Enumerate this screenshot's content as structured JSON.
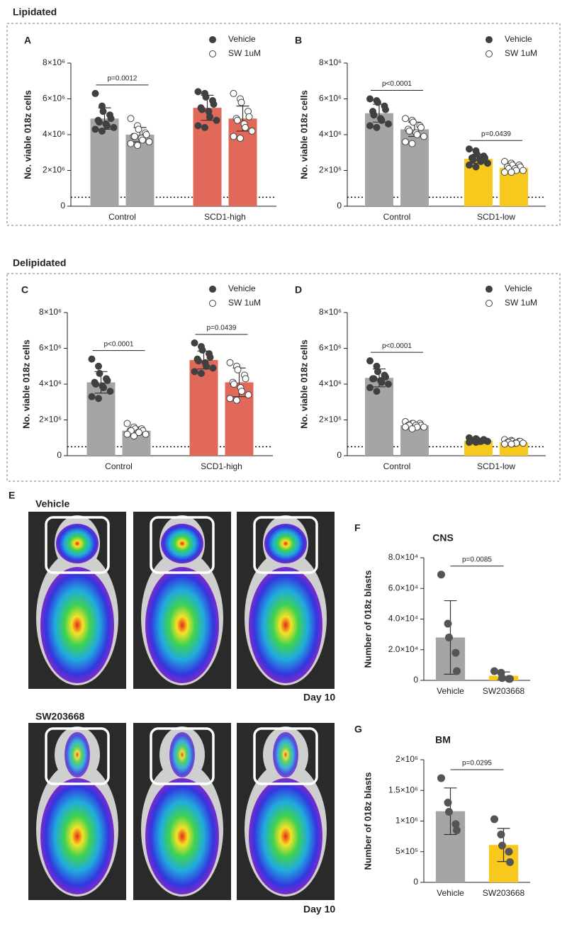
{
  "sections": [
    "Lipidated",
    "Delipidated"
  ],
  "panel_labels": [
    "A",
    "B",
    "C",
    "D",
    "E",
    "F",
    "G"
  ],
  "images": [
    {
      "title": "Vehicle",
      "day": "Day 10"
    },
    {
      "title": "SW203668",
      "day": "Day 10"
    }
  ],
  "chart_data": [
    {
      "type": "bar",
      "ylabel": "No. viable 018z cells",
      "categories": [
        "Control",
        "SCD1-high"
      ],
      "colors": [
        "#a5a5a7",
        "#e0695a"
      ],
      "ylim": [
        0,
        8000000.0
      ],
      "yticks": [
        0,
        {
          "value": 2000000.0,
          "label": "2×10⁶"
        },
        {
          "value": 4000000.0,
          "label": "4×10⁶"
        },
        {
          "value": 6000000.0,
          "label": "6×10⁶"
        },
        {
          "value": 8000000.0,
          "label": "8×10⁶"
        }
      ],
      "reference_line": 500000.0,
      "annotations": [
        "p=0.0012",
        null
      ],
      "series": [
        {
          "name": "Vehicle",
          "color": "#404040",
          "filled": true,
          "values": [
            4900000.0,
            5500000.0
          ],
          "errors": [
            600000.0,
            700000.0
          ],
          "points": [
            [
              6300000.0,
              5600000.0,
              5300000.0,
              5100000.0,
              4900000.0,
              4800000.0,
              4700000.0,
              4600000.0,
              4500000.0,
              4400000.0,
              4300000.0,
              4200000.0
            ],
            [
              6400000.0,
              6300000.0,
              6100000.0,
              5900000.0,
              5700000.0,
              5500000.0,
              5400000.0,
              5300000.0,
              5000000.0,
              4800000.0,
              4500000.0,
              4400000.0
            ]
          ]
        },
        {
          "name": "SW 1uM",
          "color": "#404040",
          "filled": false,
          "values": [
            4000000.0,
            4900000.0
          ],
          "errors": [
            400000.0,
            700000.0
          ],
          "points": [
            [
              4900000.0,
              4500000.0,
              4300000.0,
              4100000.0,
              4000000.0,
              3900000.0,
              3900000.0,
              3800000.0,
              3700000.0,
              3600000.0,
              3500000.0,
              3400000.0
            ],
            [
              6300000.0,
              6000000.0,
              5800000.0,
              5300000.0,
              5000000.0,
              4900000.0,
              4800000.0,
              4600000.0,
              4400000.0,
              4200000.0,
              3900000.0,
              3800000.0
            ]
          ]
        }
      ]
    },
    {
      "type": "bar",
      "ylabel": "No. viable 018z cells",
      "categories": [
        "Control",
        "SCD1-low"
      ],
      "colors": [
        "#a5a5a7",
        "#f7c91c"
      ],
      "ylim": [
        0,
        8000000.0
      ],
      "yticks": [
        0,
        {
          "value": 2000000.0,
          "label": "2×10⁶"
        },
        {
          "value": 4000000.0,
          "label": "4×10⁶"
        },
        {
          "value": 6000000.0,
          "label": "6×10⁶"
        },
        {
          "value": 8000000.0,
          "label": "8×10⁶"
        }
      ],
      "reference_line": 500000.0,
      "annotations": [
        "p<0.0001",
        "p=0.0439"
      ],
      "series": [
        {
          "name": "Vehicle",
          "color": "#404040",
          "filled": true,
          "values": [
            5200000.0,
            2650000.0
          ],
          "errors": [
            500000.0,
            250000.0
          ],
          "points": [
            [
              6000000.0,
              5900000.0,
              5800000.0,
              5600000.0,
              5400000.0,
              5300000.0,
              5100000.0,
              4900000.0,
              4800000.0,
              4600000.0,
              4500000.0,
              4400000.0
            ],
            [
              3200000.0,
              3100000.0,
              2900000.0,
              2800000.0,
              2700000.0,
              2700000.0,
              2600000.0,
              2600000.0,
              2500000.0,
              2400000.0,
              2300000.0,
              2200000.0
            ]
          ]
        },
        {
          "name": "SW 1uM",
          "color": "#404040",
          "filled": false,
          "values": [
            4300000.0,
            2150000.0
          ],
          "errors": [
            400000.0,
            200000.0
          ],
          "points": [
            [
              4900000.0,
              4800000.0,
              4700000.0,
              4500000.0,
              4400000.0,
              4300000.0,
              4200000.0,
              4100000.0,
              4000000.0,
              3900000.0,
              3600000.0,
              3500000.0
            ],
            [
              2500000.0,
              2400000.0,
              2300000.0,
              2300000.0,
              2200000.0,
              2200000.0,
              2100000.0,
              2100000.0,
              2000000.0,
              2000000.0,
              1900000.0,
              1900000.0
            ]
          ]
        }
      ]
    },
    {
      "type": "bar",
      "ylabel": "No. viable 018z cells",
      "categories": [
        "Control",
        "SCD1-high"
      ],
      "colors": [
        "#a5a5a7",
        "#e0695a"
      ],
      "ylim": [
        0,
        8000000.0
      ],
      "yticks": [
        0,
        {
          "value": 2000000.0,
          "label": "2×10⁶"
        },
        {
          "value": 4000000.0,
          "label": "4×10⁶"
        },
        {
          "value": 6000000.0,
          "label": "6×10⁶"
        },
        {
          "value": 8000000.0,
          "label": "8×10⁶"
        }
      ],
      "reference_line": 500000.0,
      "annotations": [
        "p<0.0001",
        "p=0.0439"
      ],
      "series": [
        {
          "name": "Vehicle",
          "color": "#404040",
          "filled": true,
          "values": [
            4100000.0,
            5350000.0
          ],
          "errors": [
            600000.0,
            500000.0
          ],
          "points": [
            [
              5400000.0,
              5000000.0,
              4600000.0,
              4300000.0,
              4200000.0,
              4100000.0,
              4000000.0,
              3900000.0,
              3800000.0,
              3600000.0,
              3300000.0,
              3200000.0
            ],
            [
              6300000.0,
              6100000.0,
              5900000.0,
              5700000.0,
              5500000.0,
              5400000.0,
              5300000.0,
              5200000.0,
              5000000.0,
              4900000.0,
              4700000.0,
              4600000.0
            ]
          ]
        },
        {
          "name": "SW 1uM",
          "color": "#404040",
          "filled": false,
          "values": [
            1400000.0,
            4100000.0
          ],
          "errors": [
            200000.0,
            800000.0
          ],
          "points": [
            [
              1800000.0,
              1600000.0,
              1500000.0,
              1500000.0,
              1400000.0,
              1400000.0,
              1400000.0,
              1300000.0,
              1300000.0,
              1200000.0,
              1200000.0,
              1100000.0
            ],
            [
              5200000.0,
              5000000.0,
              4800000.0,
              4500000.0,
              4300000.0,
              4100000.0,
              4000000.0,
              3800000.0,
              3600000.0,
              3400000.0,
              3200000.0,
              3100000.0
            ]
          ]
        }
      ]
    },
    {
      "type": "bar",
      "ylabel": "No. viable 018z cells",
      "categories": [
        "Control",
        "SCD1-low"
      ],
      "colors": [
        "#a5a5a7",
        "#f7c91c"
      ],
      "ylim": [
        0,
        8000000.0
      ],
      "yticks": [
        0,
        {
          "value": 2000000.0,
          "label": "2×10⁶"
        },
        {
          "value": 4000000.0,
          "label": "4×10⁶"
        },
        {
          "value": 6000000.0,
          "label": "6×10⁶"
        },
        {
          "value": 8000000.0,
          "label": "8×10⁶"
        }
      ],
      "reference_line": 500000.0,
      "annotations": [
        "p<0.0001",
        null
      ],
      "series": [
        {
          "name": "Vehicle",
          "color": "#404040",
          "filled": true,
          "values": [
            4350000.0,
            850000.0
          ],
          "errors": [
            500000.0,
            80000.0
          ],
          "points": [
            [
              5300000.0,
              5000000.0,
              4700000.0,
              4500000.0,
              4400000.0,
              4300000.0,
              4300000.0,
              4200000.0,
              4100000.0,
              4000000.0,
              3800000.0,
              3600000.0
            ],
            [
              1000000.0,
              950000.0,
              900000.0,
              900000.0,
              850000.0,
              850000.0,
              850000.0,
              800000.0,
              800000.0,
              800000.0,
              750000.0,
              750000.0
            ]
          ]
        },
        {
          "name": "SW 1uM",
          "color": "#404040",
          "filled": false,
          "values": [
            1700000.0,
            750000.0
          ],
          "errors": [
            100000.0,
            80000.0
          ],
          "points": [
            [
              1900000.0,
              1800000.0,
              1800000.0,
              1800000.0,
              1700000.0,
              1700000.0,
              1700000.0,
              1700000.0,
              1600000.0,
              1600000.0,
              1600000.0,
              1500000.0
            ],
            [
              900000.0,
              850000.0,
              800000.0,
              800000.0,
              800000.0,
              750000.0,
              750000.0,
              700000.0,
              700000.0,
              700000.0,
              650000.0,
              650000.0
            ]
          ]
        }
      ]
    },
    {
      "type": "bar",
      "title": "CNS",
      "ylabel": "Number of 018z blasts",
      "categories": [
        "Vehicle",
        "SW203668"
      ],
      "colors": [
        "#a5a5a7",
        "#f7c91c"
      ],
      "ylim": [
        0,
        80000.0
      ],
      "yticks": [
        0,
        {
          "value": 20000.0,
          "label": "2.0×10⁴"
        },
        {
          "value": 40000.0,
          "label": "4.0×10⁴"
        },
        {
          "value": 60000.0,
          "label": "6.0×10⁴"
        },
        {
          "value": 80000.0,
          "label": "8.0×10⁴"
        }
      ],
      "annotation": "p=0.0085",
      "point_color": "#555555",
      "values": [
        28000,
        3000
      ],
      "errors": [
        24000,
        2500
      ],
      "points": [
        [
          69000,
          37000,
          28000,
          18000,
          6000
        ],
        [
          6000,
          5000,
          1500,
          1000,
          1000
        ]
      ]
    },
    {
      "type": "bar",
      "title": "BM",
      "ylabel": "Number of 018z blasts",
      "categories": [
        "Vehicle",
        "SW203668"
      ],
      "colors": [
        "#a5a5a7",
        "#f7c91c"
      ],
      "ylim": [
        0,
        2000000.0
      ],
      "yticks": [
        0,
        {
          "value": 500000.0,
          "label": "5×10⁵"
        },
        {
          "value": 1000000.0,
          "label": "1×10⁶"
        },
        {
          "value": 1500000.0,
          "label": "1.5×10⁶"
        },
        {
          "value": 2000000.0,
          "label": "2×10⁶"
        }
      ],
      "annotation": "p=0.0295",
      "point_color": "#555555",
      "values": [
        1160000.0,
        610000.0
      ],
      "errors": [
        380000.0,
        270000.0
      ],
      "points": [
        [
          1700000.0,
          1300000.0,
          1150000.0,
          950000.0,
          850000.0
        ],
        [
          1030000.0,
          780000.0,
          600000.0,
          500000.0,
          330000.0
        ]
      ]
    }
  ]
}
